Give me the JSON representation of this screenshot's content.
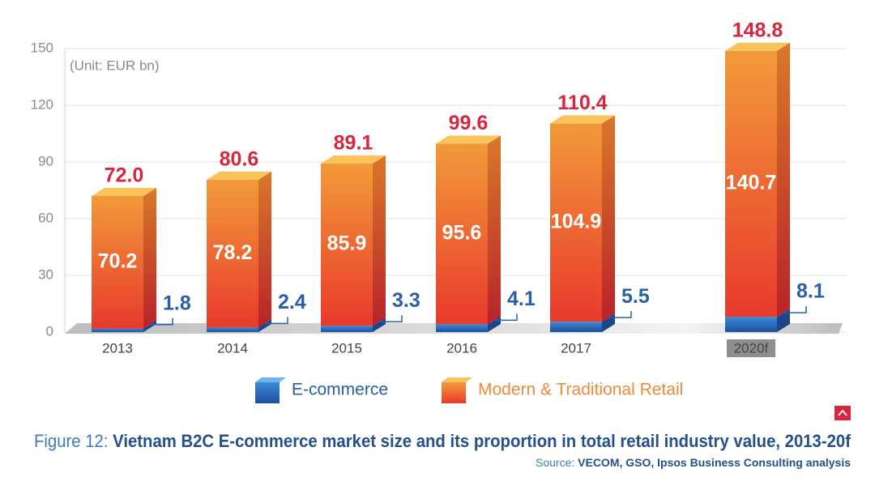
{
  "chart_data": {
    "type": "stacked-bar-3d",
    "title_prefix": "Figure 12:",
    "title": "Vietnam B2C E-commerce market size and its proportion in total retail industry value, 2013-20f",
    "source_prefix": "Source:",
    "source": "VECOM, GSO, Ipsos Business Consulting analysis",
    "unit": "(Unit: EUR bn)",
    "categories": [
      "2013",
      "2014",
      "2015",
      "2016",
      "2017",
      "2020f"
    ],
    "series": [
      {
        "name": "E-commerce",
        "color": "#2a64b4",
        "values": [
          1.8,
          2.4,
          3.3,
          4.1,
          5.5,
          8.1
        ]
      },
      {
        "name": "Modern & Traditional Retail",
        "color": "#ee6a2c",
        "values": [
          70.2,
          78.2,
          85.9,
          95.6,
          104.9,
          140.7
        ]
      }
    ],
    "totals": {
      "values": [
        72,
        80.6,
        89.1,
        99.6,
        110.4,
        148.8
      ],
      "value_labels": [
        "72.0",
        "80.6",
        "89.1",
        "99.6",
        "110.4",
        "148.8"
      ]
    },
    "ylim": [
      0,
      150
    ],
    "yticks": [
      0,
      30,
      60,
      90,
      120,
      150
    ],
    "grid": true
  }
}
